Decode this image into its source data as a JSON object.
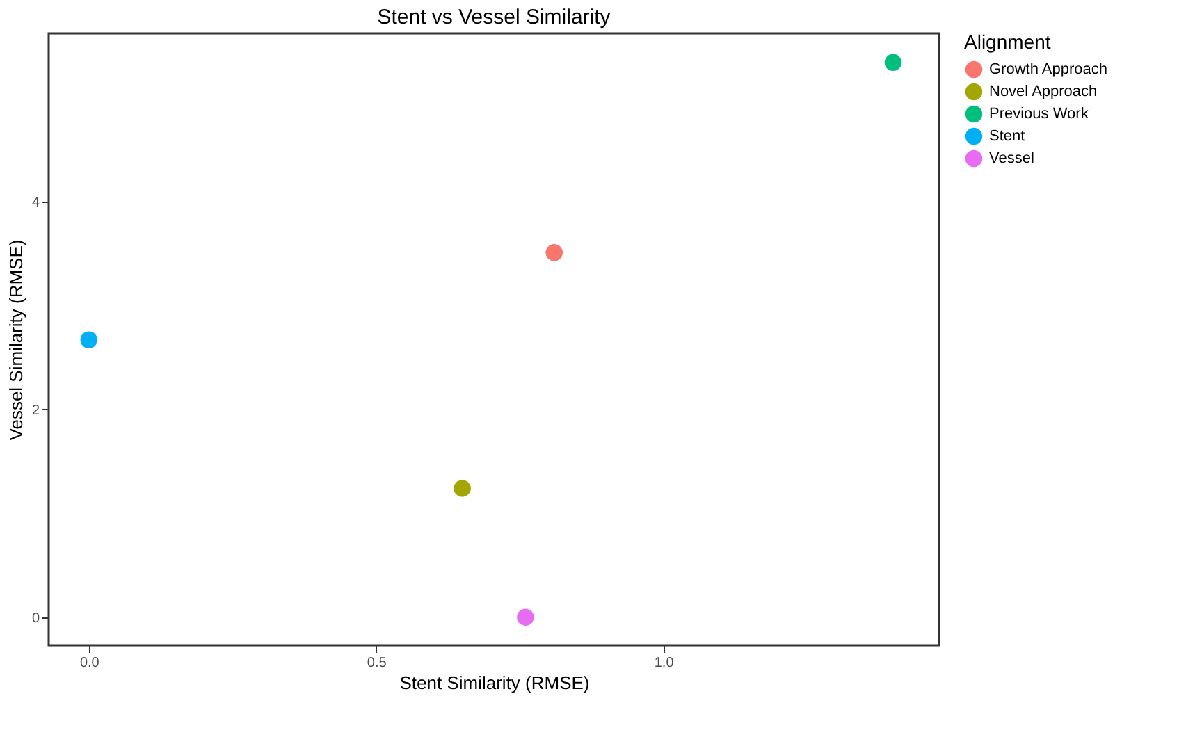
{
  "chart_data": {
    "type": "scatter",
    "title": "Stent vs Vessel Similarity",
    "xlabel": "Stent Similarity (RMSE)",
    "ylabel": "Vessel Similarity (RMSE)",
    "legend_title": "Alignment",
    "series": [
      {
        "name": "Growth Approach",
        "color": "#f8766d",
        "x": [
          0.81
        ],
        "values": [
          3.51
        ]
      },
      {
        "name": "Novel Approach",
        "color": "#a3a500",
        "x": [
          0.65
        ],
        "values": [
          1.24
        ]
      },
      {
        "name": "Previous Work",
        "color": "#00bf7d",
        "x": [
          1.4
        ],
        "values": [
          5.34
        ]
      },
      {
        "name": "Stent",
        "color": "#00b0f6",
        "x": [
          0.0
        ],
        "values": [
          2.67
        ]
      },
      {
        "name": "Vessel",
        "color": "#e76bf3",
        "x": [
          0.76
        ],
        "values": [
          0.0
        ]
      }
    ],
    "xlim": [
      -0.07,
      1.48
    ],
    "ylim": [
      -0.27,
      5.62
    ],
    "xticks": [
      {
        "value": 0,
        "label": "0.0"
      },
      {
        "value": 0.5,
        "label": "0.5"
      },
      {
        "value": 1,
        "label": "1.0"
      }
    ],
    "yticks": [
      0,
      2,
      4
    ],
    "grid": false,
    "legend": "right",
    "marker": "circle"
  }
}
